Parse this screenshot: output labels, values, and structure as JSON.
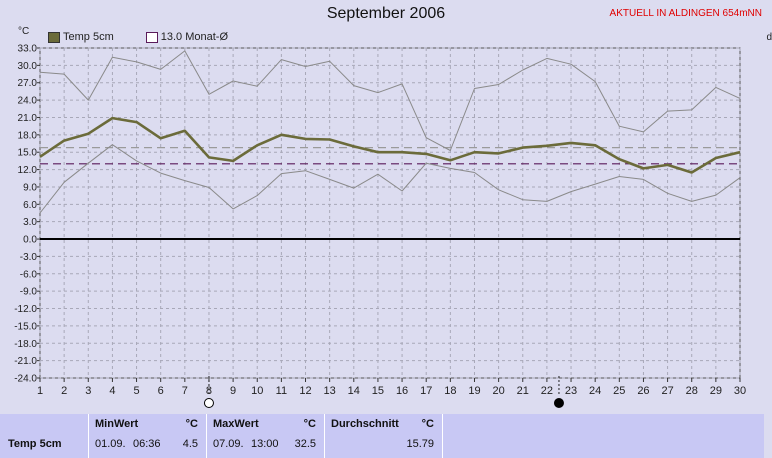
{
  "header": {
    "title": "September 2006",
    "location": "AKTUELL IN ALDINGEN 654mNN",
    "unit": "°C",
    "right_cut": "d"
  },
  "legend": [
    {
      "label": "Temp 5cm",
      "color": "#6b6b3a"
    },
    {
      "label": "13.0 Monat-Ø",
      "color": "#5a1a5a"
    }
  ],
  "chart_data": {
    "type": "line",
    "title": "September 2006",
    "ylabel": "°C",
    "x": [
      1,
      2,
      3,
      4,
      5,
      6,
      7,
      8,
      9,
      10,
      11,
      12,
      13,
      14,
      15,
      16,
      17,
      18,
      19,
      20,
      21,
      22,
      23,
      24,
      25,
      26,
      27,
      28,
      29,
      30
    ],
    "ylim": [
      -24.0,
      33.0
    ],
    "yticks": [
      33.0,
      30.0,
      27.0,
      24.0,
      21.0,
      18.0,
      15.0,
      12.0,
      9.0,
      6.0,
      3.0,
      0.0,
      -3.0,
      -6.0,
      -9.0,
      -12.0,
      -15.0,
      -18.0,
      -21.0,
      -24.0
    ],
    "grid": true,
    "series": [
      {
        "name": "Temp 5cm",
        "color": "#6b6b3a",
        "values": [
          14.2,
          17.0,
          18.2,
          20.9,
          20.2,
          17.4,
          18.7,
          14.1,
          13.5,
          16.2,
          18.0,
          17.3,
          17.2,
          16.0,
          15.0,
          15.0,
          14.7,
          13.6,
          15.0,
          14.8,
          15.8,
          16.1,
          16.6,
          16.2,
          13.8,
          12.2,
          12.8,
          11.5,
          14.0,
          15.0
        ]
      },
      {
        "name": "",
        "color": "#8a8a8a",
        "values": [
          28.8,
          28.5,
          24.0,
          31.4,
          30.6,
          29.3,
          32.5,
          25.0,
          27.3,
          26.4,
          31.0,
          29.8,
          30.7,
          26.5,
          25.3,
          26.8,
          17.5,
          15.3,
          26.0,
          26.7,
          29.2,
          31.2,
          30.2,
          27.2,
          19.5,
          18.5,
          22.1,
          22.3,
          26.2,
          24.3
        ]
      },
      {
        "name": "",
        "color": "#8a8a8a",
        "values": [
          4.5,
          9.8,
          13.1,
          16.3,
          13.5,
          11.4,
          10.1,
          8.9,
          5.2,
          7.5,
          11.3,
          11.8,
          10.3,
          8.8,
          11.2,
          8.3,
          13.1,
          12.2,
          11.5,
          8.5,
          6.8,
          6.5,
          8.2,
          9.5,
          10.8,
          10.3,
          7.9,
          6.5,
          7.6,
          10.6
        ]
      }
    ],
    "reference_lines": [
      {
        "value": 13.0,
        "style": "dashed",
        "color": "#5a1a5a"
      },
      {
        "value": 15.79,
        "style": "dashed",
        "color": "#9a9a9a"
      }
    ],
    "moon_markers": [
      {
        "day": 8,
        "phase": "full"
      },
      {
        "day": 22.5,
        "phase": "new"
      }
    ]
  },
  "footer": {
    "row_label": "Temp 5cm",
    "min": {
      "label": "MinWert",
      "unit": "°C",
      "date": "01.09.",
      "time": "06:36",
      "value": "4.5"
    },
    "max": {
      "label": "MaxWert",
      "unit": "°C",
      "date": "07.09.",
      "time": "13:00",
      "value": "32.5"
    },
    "avg": {
      "label": "Durchschnitt",
      "unit": "°C",
      "value": "15.79"
    }
  }
}
